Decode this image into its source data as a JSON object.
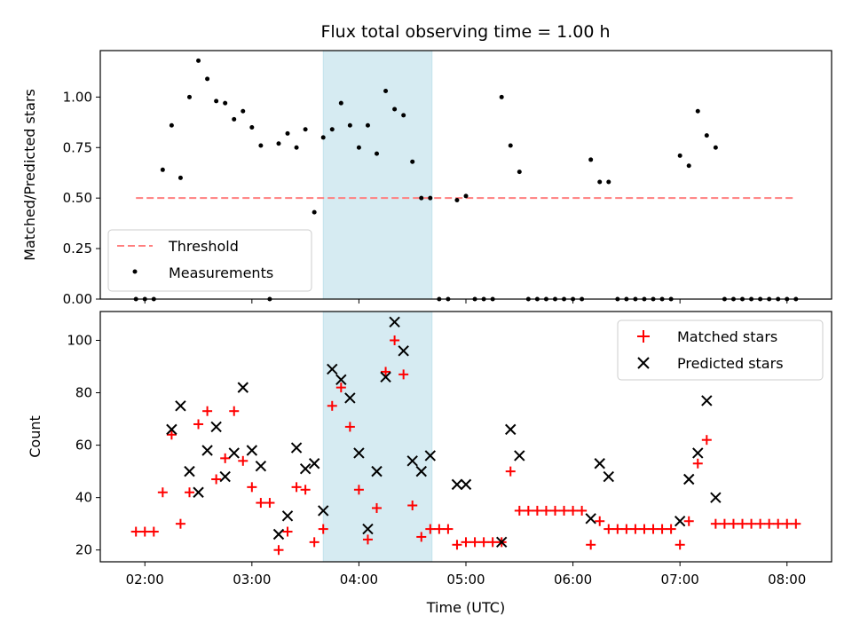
{
  "chart_data": [
    {
      "type": "scatter",
      "panel": "top",
      "title": "Flux total observing time = 1.00 h",
      "ylabel": "Matched/Predicted stars",
      "xlabel": "",
      "time_axis": {
        "start": "01:35",
        "end": "08:25",
        "ticks": [
          "02:00",
          "03:00",
          "04:00",
          "05:00",
          "06:00",
          "07:00",
          "08:00"
        ]
      },
      "ylim": [
        0,
        1.23
      ],
      "yticks": [
        "0.00",
        "0.25",
        "0.50",
        "0.75",
        "1.00"
      ],
      "highlight_span": {
        "from": "03:40",
        "to": "04:41",
        "color": "#add8e6"
      },
      "legend": {
        "placement": "bottom-left",
        "entries": [
          "Threshold",
          "Measurements"
        ]
      },
      "series": [
        {
          "name": "Threshold",
          "style": "dashed-line",
          "color": "#ff7f7f",
          "x": [
            "01:55",
            "08:05"
          ],
          "values": [
            0.5,
            0.5
          ]
        },
        {
          "name": "Measurements",
          "style": "dot",
          "color": "#000000",
          "x": [
            "01:55",
            "02:00",
            "02:05",
            "02:10",
            "02:15",
            "02:20",
            "02:25",
            "02:30",
            "02:35",
            "02:40",
            "02:45",
            "02:50",
            "02:55",
            "03:00",
            "03:05",
            "03:10",
            "03:15",
            "03:20",
            "03:25",
            "03:30",
            "03:35",
            "03:40",
            "03:45",
            "03:50",
            "03:55",
            "04:00",
            "04:05",
            "04:10",
            "04:15",
            "04:20",
            "04:25",
            "04:30",
            "04:35",
            "04:40",
            "04:45",
            "04:50",
            "04:55",
            "05:00",
            "05:05",
            "05:10",
            "05:15",
            "05:20",
            "05:25",
            "05:30",
            "05:35",
            "05:40",
            "05:45",
            "05:50",
            "05:55",
            "06:00",
            "06:05",
            "06:10",
            "06:15",
            "06:20",
            "06:25",
            "06:30",
            "06:35",
            "06:40",
            "06:45",
            "06:50",
            "06:55",
            "07:00",
            "07:05",
            "07:10",
            "07:15",
            "07:20",
            "07:25",
            "07:30",
            "07:35",
            "07:40",
            "07:45",
            "07:50",
            "07:55",
            "08:00",
            "08:05"
          ],
          "values": [
            0,
            0,
            0,
            0.64,
            0.86,
            0.6,
            1.0,
            1.18,
            1.09,
            0.98,
            0.97,
            0.89,
            0.93,
            0.85,
            0.76,
            0,
            0.77,
            0.82,
            0.75,
            0.84,
            0.43,
            0.8,
            0.84,
            0.97,
            0.86,
            0.75,
            0.86,
            0.72,
            1.03,
            0.94,
            0.91,
            0.68,
            0.5,
            0.5,
            0,
            0,
            0.49,
            0.51,
            0,
            0,
            0,
            1.0,
            0.76,
            0.63,
            0,
            0,
            0,
            0,
            0,
            0,
            0,
            0.69,
            0.58,
            0.58,
            0,
            0,
            0,
            0,
            0,
            0,
            0,
            0.71,
            0.66,
            0.93,
            0.81,
            0.75,
            0,
            0,
            0,
            0,
            0,
            0,
            0,
            0,
            0
          ]
        }
      ]
    },
    {
      "type": "scatter",
      "panel": "bottom",
      "title": "",
      "ylabel": "Count",
      "xlabel": "Time (UTC)",
      "time_axis": {
        "start": "01:35",
        "end": "08:25",
        "ticks": [
          "02:00",
          "03:00",
          "04:00",
          "05:00",
          "06:00",
          "07:00",
          "08:00"
        ]
      },
      "ylim": [
        15.5,
        111
      ],
      "yticks": [
        "20",
        "40",
        "60",
        "80",
        "100"
      ],
      "highlight_span": {
        "from": "03:40",
        "to": "04:41",
        "color": "#add8e6"
      },
      "legend": {
        "placement": "top-right",
        "entries": [
          "Matched stars",
          "Predicted stars"
        ]
      },
      "series": [
        {
          "name": "Matched stars",
          "style": "plus",
          "color": "#ff0000",
          "x": [
            "01:55",
            "02:00",
            "02:05",
            "02:10",
            "02:15",
            "02:20",
            "02:25",
            "02:30",
            "02:35",
            "02:40",
            "02:45",
            "02:50",
            "02:55",
            "03:00",
            "03:05",
            "03:10",
            "03:15",
            "03:20",
            "03:25",
            "03:30",
            "03:35",
            "03:40",
            "03:45",
            "03:50",
            "03:55",
            "04:00",
            "04:05",
            "04:10",
            "04:15",
            "04:20",
            "04:25",
            "04:30",
            "04:35",
            "04:40",
            "04:45",
            "04:50",
            "04:55",
            "05:00",
            "05:05",
            "05:10",
            "05:15",
            "05:20",
            "05:25",
            "05:30",
            "05:35",
            "05:40",
            "05:45",
            "05:50",
            "05:55",
            "06:00",
            "06:05",
            "06:10",
            "06:15",
            "06:20",
            "06:25",
            "06:30",
            "06:35",
            "06:40",
            "06:45",
            "06:50",
            "06:55",
            "07:00",
            "07:05",
            "07:10",
            "07:15",
            "07:20",
            "07:25",
            "07:30",
            "07:35",
            "07:40",
            "07:45",
            "07:50",
            "07:55",
            "08:00",
            "08:05"
          ],
          "values": [
            27,
            27,
            27,
            42,
            64,
            30,
            42,
            68,
            73,
            47,
            55,
            73,
            54,
            44,
            38,
            38,
            20,
            27,
            44,
            43,
            23,
            28,
            75,
            82,
            67,
            43,
            24,
            36,
            88,
            100,
            87,
            37,
            25,
            28,
            28,
            28,
            22,
            23,
            23,
            23,
            23,
            23,
            50,
            35,
            35,
            35,
            35,
            35,
            35,
            35,
            35,
            22,
            31,
            28,
            28,
            28,
            28,
            28,
            28,
            28,
            28,
            22,
            31,
            53,
            62,
            30,
            30,
            30,
            30,
            30,
            30,
            30,
            30,
            30,
            30
          ]
        },
        {
          "name": "Predicted stars",
          "style": "x",
          "color": "#000000",
          "x": [
            "02:15",
            "02:20",
            "02:25",
            "02:30",
            "02:35",
            "02:40",
            "02:45",
            "02:50",
            "02:55",
            "03:00",
            "03:05",
            "03:15",
            "03:20",
            "03:25",
            "03:30",
            "03:35",
            "03:40",
            "03:45",
            "03:50",
            "03:55",
            "04:00",
            "04:05",
            "04:10",
            "04:15",
            "04:20",
            "04:25",
            "04:30",
            "04:35",
            "04:40",
            "04:55",
            "05:00",
            "05:20",
            "05:25",
            "05:30",
            "06:10",
            "06:15",
            "06:20",
            "07:00",
            "07:05",
            "07:10",
            "07:15",
            "07:20"
          ],
          "values": [
            66,
            75,
            50,
            42,
            58,
            67,
            48,
            57,
            82,
            58,
            52,
            26,
            33,
            59,
            51,
            53,
            35,
            89,
            85,
            78,
            57,
            28,
            50,
            86,
            107,
            96,
            54,
            50,
            56,
            45,
            45,
            23,
            66,
            56,
            32,
            53,
            48,
            31,
            47,
            57,
            77,
            40
          ]
        }
      ]
    }
  ]
}
